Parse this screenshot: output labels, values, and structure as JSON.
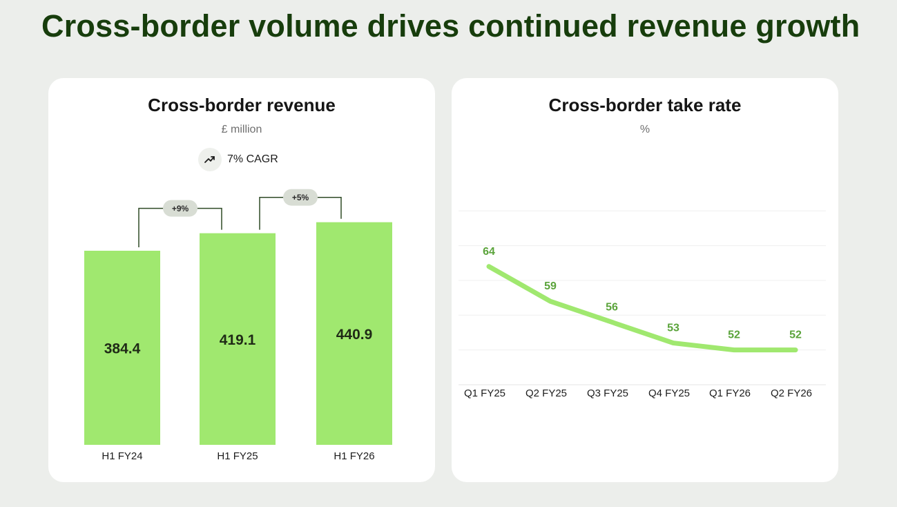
{
  "title": "Cross-border volume drives continued revenue growth",
  "colors": {
    "background": "#eceeeb",
    "title": "#173d0c",
    "bar": "#a0e86f",
    "line": "#a0e86f",
    "line_label": "#5aa33a",
    "bracket": "#2e4a25",
    "pill": "#d8ddd4"
  },
  "revenue_card": {
    "title": "Cross-border revenue",
    "subtitle": "£ million",
    "cagr_icon": "trending-up-icon",
    "cagr_label": "7% CAGR"
  },
  "take_rate_card": {
    "title": "Cross-border take rate",
    "subtitle": "%"
  },
  "chart_data": [
    {
      "type": "bar",
      "title": "Cross-border revenue",
      "ylabel": "£ million",
      "categories": [
        "H1 FY24",
        "H1 FY25",
        "H1 FY26"
      ],
      "values": [
        384.4,
        419.1,
        440.9
      ],
      "value_labels": [
        "384.4",
        "419.1",
        "440.9"
      ],
      "growth_annotations": [
        {
          "from": "H1 FY24",
          "to": "H1 FY25",
          "label": "+9%"
        },
        {
          "from": "H1 FY25",
          "to": "H1 FY26",
          "label": "+5%"
        }
      ],
      "annotation": "7% CAGR"
    },
    {
      "type": "line",
      "title": "Cross-border take rate",
      "ylabel": "%",
      "categories": [
        "Q1 FY25",
        "Q2 FY25",
        "Q3 FY25",
        "Q4 FY25",
        "Q1 FY26",
        "Q2 FY26"
      ],
      "values": [
        64,
        59,
        56,
        53,
        52,
        52
      ],
      "ylim": [
        47,
        72
      ],
      "grid": true
    }
  ]
}
